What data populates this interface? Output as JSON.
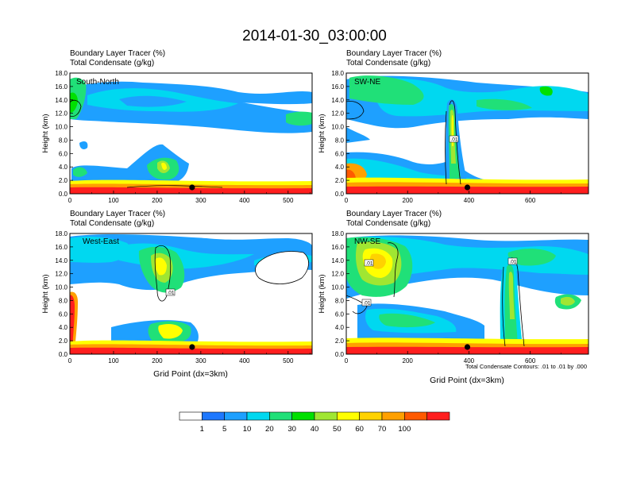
{
  "figure": {
    "title": "2014-01-30_03:00:00",
    "note": "Total Condensate Contours: .01 to .01 by .000",
    "x_label": "Grid Point (dx=3km)"
  },
  "colorbar": {
    "levels": [
      "1",
      "5",
      "10",
      "20",
      "30",
      "40",
      "50",
      "60",
      "70",
      "100"
    ],
    "colors": [
      "#ffffff",
      "#1e78ff",
      "#1ea0ff",
      "#00d8f0",
      "#20e078",
      "#00e000",
      "#a0e632",
      "#ffff00",
      "#ffd200",
      "#ffa000",
      "#ff5a00",
      "#ff1e1e"
    ]
  },
  "chart_data": [
    {
      "type": "heatmap",
      "panel": "South-North",
      "subtitle_line1": "Boundary Layer Tracer   (%)",
      "subtitle_line2": "Total Condensate   (g/kg)",
      "ylabel": "Height (km)",
      "xlim": [
        0,
        555
      ],
      "ylim": [
        0,
        18
      ],
      "xticks": [
        "0",
        "100",
        "200",
        "300",
        "400",
        "500"
      ],
      "yticks": [
        "0.0",
        "2.0",
        "4.0",
        "6.0",
        "8.0",
        "10.0",
        "12.0",
        "14.0",
        "16.0",
        "18.0"
      ],
      "marker_x": 280,
      "contour_labels": [],
      "tracer_regions": [
        {
          "x": [
            0,
            555
          ],
          "y": [
            10.0,
            16.0
          ],
          "value": 5
        },
        {
          "x": [
            20,
            260
          ],
          "y": [
            11.5,
            15.0
          ],
          "value": 10
        },
        {
          "x": [
            0,
            25
          ],
          "y": [
            13.0,
            17.5
          ],
          "value": 30
        },
        {
          "x": [
            0,
            555
          ],
          "y": [
            0.0,
            1.2
          ],
          "value": 50
        },
        {
          "x": [
            0,
            555
          ],
          "y": [
            0.0,
            0.5
          ],
          "value": 100
        },
        {
          "x": [
            150,
            260
          ],
          "y": [
            1.5,
            6.0
          ],
          "value": 10
        },
        {
          "x": [
            195,
            235
          ],
          "y": [
            2.5,
            4.5
          ],
          "value": 40
        }
      ]
    },
    {
      "type": "heatmap",
      "panel": "SW-NE",
      "subtitle_line1": "Boundary Layer Tracer   (%)",
      "subtitle_line2": "Total Condensate   (g/kg)",
      "ylabel": "Height (km)",
      "xlim": [
        0,
        790
      ],
      "ylim": [
        0,
        18
      ],
      "xticks": [
        "0",
        "200",
        "400",
        "600"
      ],
      "yticks": [
        "0.0",
        "2.0",
        "4.0",
        "6.0",
        "8.0",
        "10.0",
        "12.0",
        "14.0",
        "16.0",
        "18.0"
      ],
      "marker_x": 395,
      "contour_labels": [
        ".01"
      ],
      "tracer_regions": [
        {
          "x": [
            0,
            790
          ],
          "y": [
            11.0,
            16.5
          ],
          "value": 5
        },
        {
          "x": [
            30,
            380
          ],
          "y": [
            12.5,
            16.0
          ],
          "value": 20
        },
        {
          "x": [
            0,
            320
          ],
          "y": [
            0.0,
            5.0
          ],
          "value": 10
        },
        {
          "x": [
            0,
            60
          ],
          "y": [
            1.0,
            4.5
          ],
          "value": 50
        },
        {
          "x": [
            330,
            370
          ],
          "y": [
            1.0,
            13.5
          ],
          "value": 30
        },
        {
          "x": [
            0,
            790
          ],
          "y": [
            0.0,
            1.0
          ],
          "value": 70
        }
      ]
    },
    {
      "type": "heatmap",
      "panel": "West-East",
      "subtitle_line1": "Boundary Layer Tracer   (%)",
      "subtitle_line2": "Total Condensate   (g/kg)",
      "ylabel": "Height (km)",
      "xlim": [
        0,
        555
      ],
      "ylim": [
        0,
        18
      ],
      "xticks": [
        "0",
        "100",
        "200",
        "300",
        "400",
        "500"
      ],
      "yticks": [
        "0.0",
        "2.0",
        "4.0",
        "6.0",
        "8.0",
        "10.0",
        "12.0",
        "14.0",
        "16.0",
        "18.0"
      ],
      "marker_x": 280,
      "contour_labels": [
        ".01"
      ],
      "tracer_regions": [
        {
          "x": [
            0,
            555
          ],
          "y": [
            10.0,
            17.0
          ],
          "value": 5
        },
        {
          "x": [
            0,
            120
          ],
          "y": [
            13.0,
            17.0
          ],
          "value": 20
        },
        {
          "x": [
            160,
            250
          ],
          "y": [
            9.0,
            15.5
          ],
          "value": 50
        },
        {
          "x": [
            0,
            30
          ],
          "y": [
            0.0,
            8.5
          ],
          "value": 70
        },
        {
          "x": [
            80,
            280
          ],
          "y": [
            1.5,
            5.0
          ],
          "value": 10
        },
        {
          "x": [
            0,
            555
          ],
          "y": [
            0.0,
            1.0
          ],
          "value": 70
        }
      ]
    },
    {
      "type": "heatmap",
      "panel": "NW-SE",
      "subtitle_line1": "Boundary Layer Tracer   (%)",
      "subtitle_line2": "Total Condensate   (g/kg)",
      "ylabel": "Height (km)",
      "xlim": [
        0,
        790
      ],
      "ylim": [
        0,
        18
      ],
      "xticks": [
        "0",
        "200",
        "400",
        "600"
      ],
      "yticks": [
        "0.0",
        "2.0",
        "4.0",
        "6.0",
        "8.0",
        "10.0",
        "12.0",
        "14.0",
        "16.0",
        "18.0"
      ],
      "marker_x": 395,
      "contour_labels": [
        ".01",
        ".01",
        ".01"
      ],
      "tracer_regions": [
        {
          "x": [
            0,
            790
          ],
          "y": [
            9.0,
            17.0
          ],
          "value": 10
        },
        {
          "x": [
            20,
            200
          ],
          "y": [
            10.0,
            16.0
          ],
          "value": 50
        },
        {
          "x": [
            30,
            320
          ],
          "y": [
            2.5,
            6.5
          ],
          "value": 20
        },
        {
          "x": [
            530,
            580
          ],
          "y": [
            1.0,
            13.5
          ],
          "value": 30
        },
        {
          "x": [
            0,
            790
          ],
          "y": [
            0.0,
            1.0
          ],
          "value": 70
        }
      ]
    }
  ]
}
